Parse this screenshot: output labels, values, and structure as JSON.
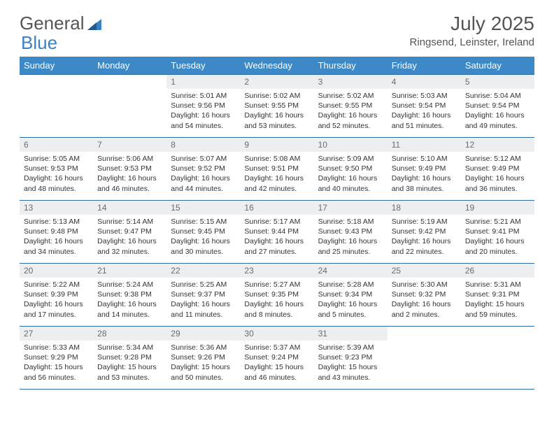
{
  "brand": {
    "part1": "General",
    "part2": "Blue"
  },
  "title": "July 2025",
  "location": "Ringsend, Leinster, Ireland",
  "colors": {
    "header_bg": "#3d88c7",
    "header_text": "#ffffff",
    "daynum_bg": "#eceeef",
    "row_border": "#2e6ca3",
    "logo_blue": "#3b82c4"
  },
  "weekdays": [
    "Sunday",
    "Monday",
    "Tuesday",
    "Wednesday",
    "Thursday",
    "Friday",
    "Saturday"
  ],
  "weeks": [
    [
      {
        "n": "",
        "empty": true
      },
      {
        "n": "",
        "empty": true
      },
      {
        "n": "1",
        "sunrise": "Sunrise: 5:01 AM",
        "sunset": "Sunset: 9:56 PM",
        "dl1": "Daylight: 16 hours",
        "dl2": "and 54 minutes."
      },
      {
        "n": "2",
        "sunrise": "Sunrise: 5:02 AM",
        "sunset": "Sunset: 9:55 PM",
        "dl1": "Daylight: 16 hours",
        "dl2": "and 53 minutes."
      },
      {
        "n": "3",
        "sunrise": "Sunrise: 5:02 AM",
        "sunset": "Sunset: 9:55 PM",
        "dl1": "Daylight: 16 hours",
        "dl2": "and 52 minutes."
      },
      {
        "n": "4",
        "sunrise": "Sunrise: 5:03 AM",
        "sunset": "Sunset: 9:54 PM",
        "dl1": "Daylight: 16 hours",
        "dl2": "and 51 minutes."
      },
      {
        "n": "5",
        "sunrise": "Sunrise: 5:04 AM",
        "sunset": "Sunset: 9:54 PM",
        "dl1": "Daylight: 16 hours",
        "dl2": "and 49 minutes."
      }
    ],
    [
      {
        "n": "6",
        "sunrise": "Sunrise: 5:05 AM",
        "sunset": "Sunset: 9:53 PM",
        "dl1": "Daylight: 16 hours",
        "dl2": "and 48 minutes."
      },
      {
        "n": "7",
        "sunrise": "Sunrise: 5:06 AM",
        "sunset": "Sunset: 9:53 PM",
        "dl1": "Daylight: 16 hours",
        "dl2": "and 46 minutes."
      },
      {
        "n": "8",
        "sunrise": "Sunrise: 5:07 AM",
        "sunset": "Sunset: 9:52 PM",
        "dl1": "Daylight: 16 hours",
        "dl2": "and 44 minutes."
      },
      {
        "n": "9",
        "sunrise": "Sunrise: 5:08 AM",
        "sunset": "Sunset: 9:51 PM",
        "dl1": "Daylight: 16 hours",
        "dl2": "and 42 minutes."
      },
      {
        "n": "10",
        "sunrise": "Sunrise: 5:09 AM",
        "sunset": "Sunset: 9:50 PM",
        "dl1": "Daylight: 16 hours",
        "dl2": "and 40 minutes."
      },
      {
        "n": "11",
        "sunrise": "Sunrise: 5:10 AM",
        "sunset": "Sunset: 9:49 PM",
        "dl1": "Daylight: 16 hours",
        "dl2": "and 38 minutes."
      },
      {
        "n": "12",
        "sunrise": "Sunrise: 5:12 AM",
        "sunset": "Sunset: 9:49 PM",
        "dl1": "Daylight: 16 hours",
        "dl2": "and 36 minutes."
      }
    ],
    [
      {
        "n": "13",
        "sunrise": "Sunrise: 5:13 AM",
        "sunset": "Sunset: 9:48 PM",
        "dl1": "Daylight: 16 hours",
        "dl2": "and 34 minutes."
      },
      {
        "n": "14",
        "sunrise": "Sunrise: 5:14 AM",
        "sunset": "Sunset: 9:47 PM",
        "dl1": "Daylight: 16 hours",
        "dl2": "and 32 minutes."
      },
      {
        "n": "15",
        "sunrise": "Sunrise: 5:15 AM",
        "sunset": "Sunset: 9:45 PM",
        "dl1": "Daylight: 16 hours",
        "dl2": "and 30 minutes."
      },
      {
        "n": "16",
        "sunrise": "Sunrise: 5:17 AM",
        "sunset": "Sunset: 9:44 PM",
        "dl1": "Daylight: 16 hours",
        "dl2": "and 27 minutes."
      },
      {
        "n": "17",
        "sunrise": "Sunrise: 5:18 AM",
        "sunset": "Sunset: 9:43 PM",
        "dl1": "Daylight: 16 hours",
        "dl2": "and 25 minutes."
      },
      {
        "n": "18",
        "sunrise": "Sunrise: 5:19 AM",
        "sunset": "Sunset: 9:42 PM",
        "dl1": "Daylight: 16 hours",
        "dl2": "and 22 minutes."
      },
      {
        "n": "19",
        "sunrise": "Sunrise: 5:21 AM",
        "sunset": "Sunset: 9:41 PM",
        "dl1": "Daylight: 16 hours",
        "dl2": "and 20 minutes."
      }
    ],
    [
      {
        "n": "20",
        "sunrise": "Sunrise: 5:22 AM",
        "sunset": "Sunset: 9:39 PM",
        "dl1": "Daylight: 16 hours",
        "dl2": "and 17 minutes."
      },
      {
        "n": "21",
        "sunrise": "Sunrise: 5:24 AM",
        "sunset": "Sunset: 9:38 PM",
        "dl1": "Daylight: 16 hours",
        "dl2": "and 14 minutes."
      },
      {
        "n": "22",
        "sunrise": "Sunrise: 5:25 AM",
        "sunset": "Sunset: 9:37 PM",
        "dl1": "Daylight: 16 hours",
        "dl2": "and 11 minutes."
      },
      {
        "n": "23",
        "sunrise": "Sunrise: 5:27 AM",
        "sunset": "Sunset: 9:35 PM",
        "dl1": "Daylight: 16 hours",
        "dl2": "and 8 minutes."
      },
      {
        "n": "24",
        "sunrise": "Sunrise: 5:28 AM",
        "sunset": "Sunset: 9:34 PM",
        "dl1": "Daylight: 16 hours",
        "dl2": "and 5 minutes."
      },
      {
        "n": "25",
        "sunrise": "Sunrise: 5:30 AM",
        "sunset": "Sunset: 9:32 PM",
        "dl1": "Daylight: 16 hours",
        "dl2": "and 2 minutes."
      },
      {
        "n": "26",
        "sunrise": "Sunrise: 5:31 AM",
        "sunset": "Sunset: 9:31 PM",
        "dl1": "Daylight: 15 hours",
        "dl2": "and 59 minutes."
      }
    ],
    [
      {
        "n": "27",
        "sunrise": "Sunrise: 5:33 AM",
        "sunset": "Sunset: 9:29 PM",
        "dl1": "Daylight: 15 hours",
        "dl2": "and 56 minutes."
      },
      {
        "n": "28",
        "sunrise": "Sunrise: 5:34 AM",
        "sunset": "Sunset: 9:28 PM",
        "dl1": "Daylight: 15 hours",
        "dl2": "and 53 minutes."
      },
      {
        "n": "29",
        "sunrise": "Sunrise: 5:36 AM",
        "sunset": "Sunset: 9:26 PM",
        "dl1": "Daylight: 15 hours",
        "dl2": "and 50 minutes."
      },
      {
        "n": "30",
        "sunrise": "Sunrise: 5:37 AM",
        "sunset": "Sunset: 9:24 PM",
        "dl1": "Daylight: 15 hours",
        "dl2": "and 46 minutes."
      },
      {
        "n": "31",
        "sunrise": "Sunrise: 5:39 AM",
        "sunset": "Sunset: 9:23 PM",
        "dl1": "Daylight: 15 hours",
        "dl2": "and 43 minutes."
      },
      {
        "n": "",
        "empty": true
      },
      {
        "n": "",
        "empty": true
      }
    ]
  ]
}
